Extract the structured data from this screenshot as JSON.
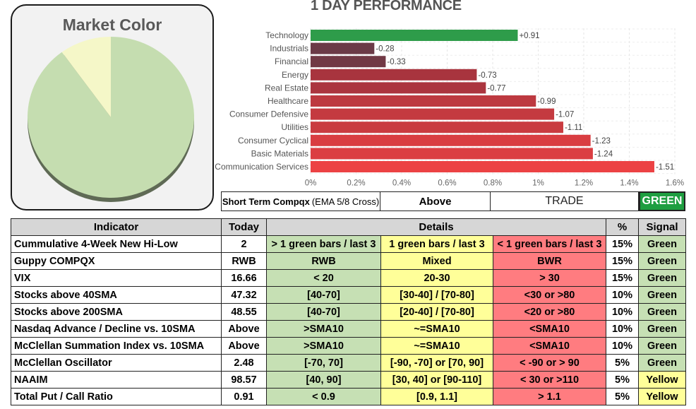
{
  "market_color": {
    "title": "Market Color",
    "slices": [
      {
        "name": "green",
        "value": 90,
        "color": "#c5ddb0"
      },
      {
        "name": "yellow",
        "value": 10,
        "color": "#f5f7c8"
      }
    ]
  },
  "performance": {
    "title": "1 DAY PERFORMANCE"
  },
  "chart_data": {
    "type": "bar",
    "orientation": "horizontal",
    "title": "1 DAY PERFORMANCE",
    "categories": [
      "Technology",
      "Industrials",
      "Financial",
      "Energy",
      "Real Estate",
      "Healthcare",
      "Consumer Defensive",
      "Utilities",
      "Consumer Cyclical",
      "Basic Materials",
      "Communication Services"
    ],
    "values": [
      0.91,
      -0.28,
      -0.33,
      -0.73,
      -0.77,
      -0.99,
      -1.07,
      -1.11,
      -1.23,
      -1.24,
      -1.51
    ],
    "value_labels": [
      "+0.91",
      "-0.28",
      "-0.33",
      "-0.73",
      "-0.77",
      "-0.99",
      "-1.07",
      "-1.11",
      "-1.23",
      "-1.24",
      "-1.51"
    ],
    "bar_colors": [
      "#2e9c4a",
      "#6b3a47",
      "#713945",
      "#a8343e",
      "#ab353f",
      "#bd3940",
      "#c43a40",
      "#c93b40",
      "#d93d41",
      "#db3e42",
      "#ec4244"
    ],
    "xticks": [
      "0%",
      "0.2%",
      "0.4%",
      "0.6%",
      "0.8%",
      "1%",
      "1.2%",
      "1.4%",
      "1.6%"
    ],
    "xlim": [
      0,
      1.6
    ],
    "magnitude_axis": true,
    "grid": true
  },
  "short_term": {
    "label_bold": "Short Term Compqx",
    "label_rest": "(EMA 5/8 Cross)",
    "value": "Above",
    "trade": "TRADE",
    "signal": "GREEN",
    "signal_color": "#1e9e40"
  },
  "table": {
    "headers": {
      "indicator": "Indicator",
      "today": "Today",
      "details": "Details",
      "pct": "%",
      "signal": "Signal"
    },
    "rows": [
      {
        "name": "Cummulative 4-Week New Hi-Low",
        "today": "2",
        "green": "> 1 green bars / last 3",
        "yellow": "1 green bars / last 3",
        "red": "< 1 green bars / last 3",
        "pct": "15%",
        "signal": "Green"
      },
      {
        "name": "Guppy COMPQX",
        "today": "RWB",
        "green": "RWB",
        "yellow": "Mixed",
        "red": "BWR",
        "pct": "15%",
        "signal": "Green"
      },
      {
        "name": "VIX",
        "today": "16.66",
        "green": "< 20",
        "yellow": "20-30",
        "red": "> 30",
        "pct": "15%",
        "signal": "Green"
      },
      {
        "name": "Stocks above 40SMA",
        "today": "47.32",
        "green": "[40-70]",
        "yellow": "[30-40] / [70-80]",
        "red": "<30 or >80",
        "pct": "10%",
        "signal": "Green"
      },
      {
        "name": "Stocks above 200SMA",
        "today": "48.55",
        "green": "[40-70]",
        "yellow": "[20-40] / [70-80]",
        "red": "<20 or >80",
        "pct": "10%",
        "signal": "Green"
      },
      {
        "name": "Nasdaq Advance / Decline vs. 10SMA",
        "today": "Above",
        "green": ">SMA10",
        "yellow": "~=SMA10",
        "red": "<SMA10",
        "pct": "10%",
        "signal": "Green"
      },
      {
        "name": "McClellan Summation Index vs. 10SMA",
        "today": "Above",
        "green": ">SMA10",
        "yellow": "~=SMA10",
        "red": "<SMA10",
        "pct": "10%",
        "signal": "Green"
      },
      {
        "name": "McClellan Oscillator",
        "today": "2.48",
        "green": "[-70,  70]",
        "yellow": "[-90, -70] or [70, 90]",
        "red": "< -90 or > 90",
        "pct": "5%",
        "signal": "Green"
      },
      {
        "name": "NAAIM",
        "today": "98.57",
        "green": "[40, 90]",
        "yellow": "[30, 40] or [90-110]",
        "red": "< 30 or >110",
        "pct": "5%",
        "signal": "Yellow"
      },
      {
        "name": "Total Put / Call Ratio",
        "today": "0.91",
        "green": "< 0.9",
        "yellow": "[0.9, 1.1]",
        "red": "> 1.1",
        "pct": "5%",
        "signal": "Yellow"
      }
    ]
  }
}
